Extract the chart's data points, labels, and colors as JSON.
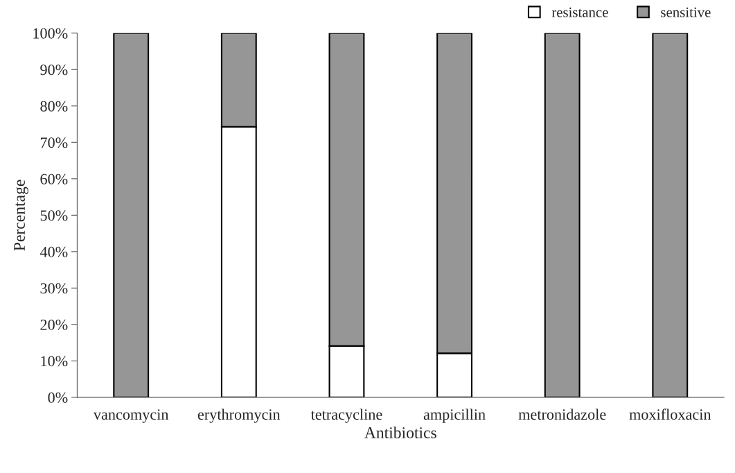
{
  "chart_data": {
    "type": "bar",
    "stacked": true,
    "xlabel": "Antibiotics",
    "ylabel": "Percentage",
    "categories": [
      "vancomycin",
      "erythromycin",
      "tetracycline",
      "ampicillin",
      "metronidazole",
      "moxifloxacin"
    ],
    "series": [
      {
        "name": "resistance",
        "color": "#ffffff",
        "values": [
          0,
          74.3,
          14.1,
          12.1,
          0,
          0
        ]
      },
      {
        "name": "sensitive",
        "color": "#969696",
        "values": [
          100,
          25.7,
          85.9,
          87.9,
          100,
          100
        ]
      }
    ],
    "ylim": [
      0,
      100
    ],
    "yticks": [
      {
        "value": 0,
        "label": "0%"
      },
      {
        "value": 10,
        "label": "10%"
      },
      {
        "value": 20,
        "label": "20%"
      },
      {
        "value": 30,
        "label": "30%"
      },
      {
        "value": 40,
        "label": "40%"
      },
      {
        "value": 50,
        "label": "50%"
      },
      {
        "value": 60,
        "label": "60%"
      },
      {
        "value": 70,
        "label": "70%"
      },
      {
        "value": 80,
        "label": "80%"
      },
      {
        "value": 90,
        "label": "90%"
      },
      {
        "value": 100,
        "label": "100%"
      }
    ],
    "grid": false,
    "legend": "top right"
  }
}
